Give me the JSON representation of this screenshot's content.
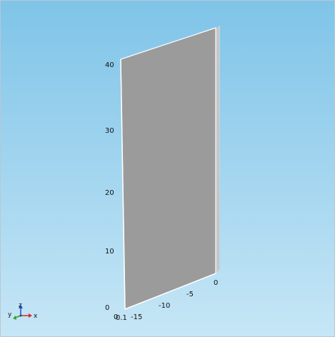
{
  "viewport": {
    "background_top": "#7fc4e8",
    "background_bottom": "#c6e6f6"
  },
  "model": {
    "face_color": "#9b9b9b",
    "edge_color": "#ffffff"
  },
  "axes": {
    "z_ticks": [
      "0",
      "10",
      "20",
      "30",
      "40"
    ],
    "x_ticks": [
      "-15",
      "-10",
      "-5",
      "0"
    ],
    "y_ticks": [
      "0",
      "0.1"
    ]
  },
  "triad": {
    "x_label": "x",
    "y_label": "y",
    "z_label": "z",
    "x_color": "#d62728",
    "y_color": "#2ca02c",
    "z_color": "#1f4fd6"
  }
}
